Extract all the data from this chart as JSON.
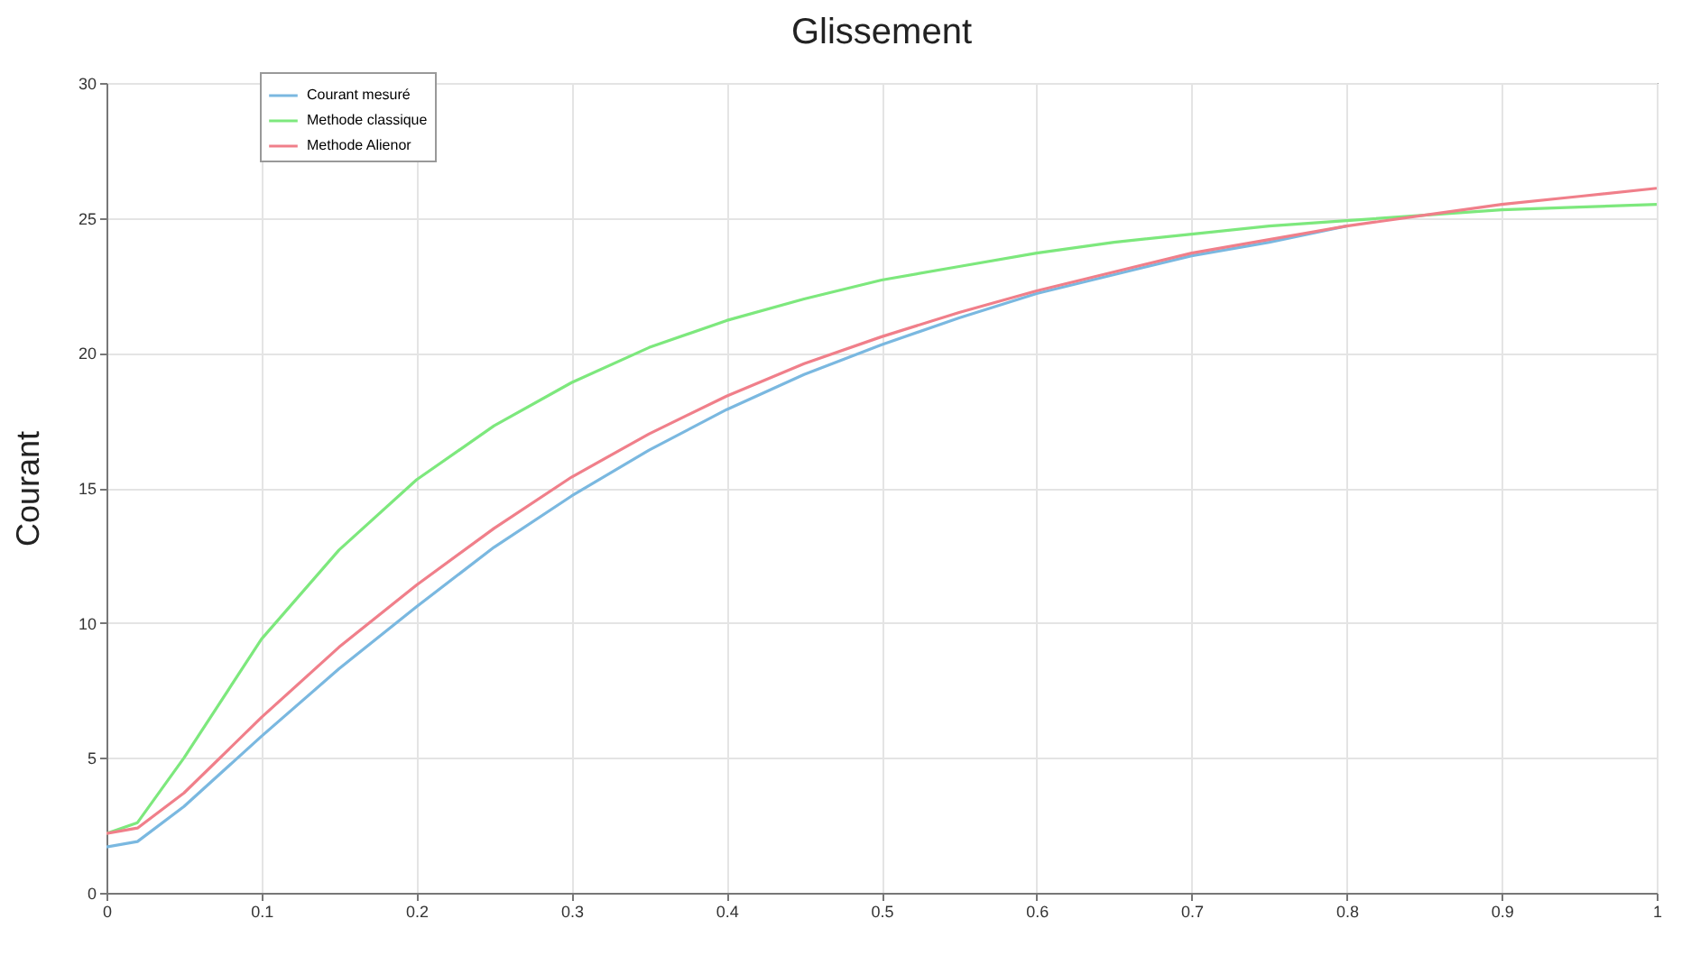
{
  "chart_data": {
    "type": "line",
    "title": "Glissement",
    "ylabel": "Courant",
    "x": [
      0,
      0.02,
      0.05,
      0.1,
      0.15,
      0.2,
      0.25,
      0.3,
      0.35,
      0.4,
      0.45,
      0.5,
      0.55,
      0.6,
      0.65,
      0.7,
      0.75,
      0.8,
      0.85,
      0.9,
      0.95,
      1
    ],
    "series": [
      {
        "name": "Courant mesuré",
        "color": "#7ab8e0",
        "values": [
          1.7,
          1.9,
          3.2,
          5.8,
          8.3,
          10.6,
          12.8,
          14.7,
          16.4,
          17.9,
          19.2,
          20.3,
          21.3,
          22.2,
          22.9,
          23.6,
          24.1,
          24.7,
          null,
          null,
          null,
          null
        ]
      },
      {
        "name": "Methode classique",
        "color": "#7de87d",
        "values": [
          2.2,
          2.6,
          5.0,
          9.4,
          12.7,
          15.3,
          17.3,
          18.9,
          20.2,
          21.2,
          22.0,
          22.7,
          23.2,
          23.7,
          24.1,
          24.4,
          24.7,
          24.9,
          25.1,
          25.3,
          25.4,
          25.5
        ]
      },
      {
        "name": "Methode Alienor",
        "color": "#f07f8a",
        "values": [
          2.2,
          2.4,
          3.7,
          6.5,
          9.1,
          11.4,
          13.5,
          15.4,
          17.0,
          18.4,
          19.6,
          20.6,
          21.5,
          22.3,
          23.0,
          23.7,
          24.2,
          24.7,
          25.1,
          25.5,
          25.8,
          26.1
        ]
      }
    ],
    "xlim": [
      0,
      1
    ],
    "xticks": [
      0,
      0.1,
      0.2,
      0.3,
      0.4,
      0.5,
      0.6,
      0.7,
      0.8,
      0.9,
      1
    ],
    "ylim": [
      0,
      30
    ],
    "yticks": [
      0,
      5,
      10,
      15,
      20,
      25,
      30
    ],
    "grid": true,
    "legend": "top left",
    "marker": "none",
    "line_style": "solid"
  }
}
